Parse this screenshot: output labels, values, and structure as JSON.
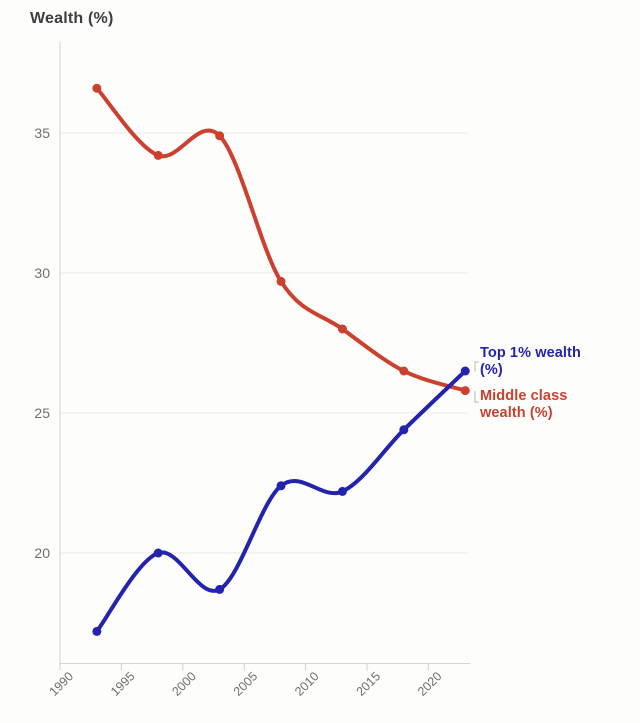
{
  "chart_data": {
    "type": "line",
    "title": "Wealth (%)",
    "x": [
      1993,
      1998,
      2003,
      2008,
      2013,
      2018,
      2023
    ],
    "series": [
      {
        "name": "Middle class wealth (%)",
        "label_line1": "Middle class",
        "label_line2": "wealth (%)",
        "color": "#cc4030",
        "values": [
          36.6,
          34.2,
          34.9,
          29.7,
          28.0,
          26.5,
          25.8
        ]
      },
      {
        "name": "Top 1% wealth (%)",
        "label_line1": "Top 1% wealth",
        "label_line2": "(%)",
        "color": "#2323ae",
        "values": [
          17.2,
          20.0,
          18.7,
          22.4,
          22.2,
          24.4,
          26.5
        ]
      }
    ],
    "x_ticks": [
      1990,
      1995,
      2000,
      2005,
      2010,
      2015,
      2020
    ],
    "y_ticks": [
      20,
      25,
      30,
      35
    ],
    "xlim": [
      1990,
      2023.4
    ],
    "ylim": [
      16.0,
      38.3
    ],
    "grid": "horizontal-only",
    "legend_position": "right-end-labels",
    "curve": "smoothed"
  },
  "palette": {
    "background": "#fdfdfc",
    "gridline": "#e9e9e9",
    "axis_line": "#d4d4d4",
    "tick_mark": "#cfcfcf",
    "tick_text": "#6f6f6f",
    "title_text": "#3e3e3e",
    "leader_mark": "#c2c2c2"
  }
}
